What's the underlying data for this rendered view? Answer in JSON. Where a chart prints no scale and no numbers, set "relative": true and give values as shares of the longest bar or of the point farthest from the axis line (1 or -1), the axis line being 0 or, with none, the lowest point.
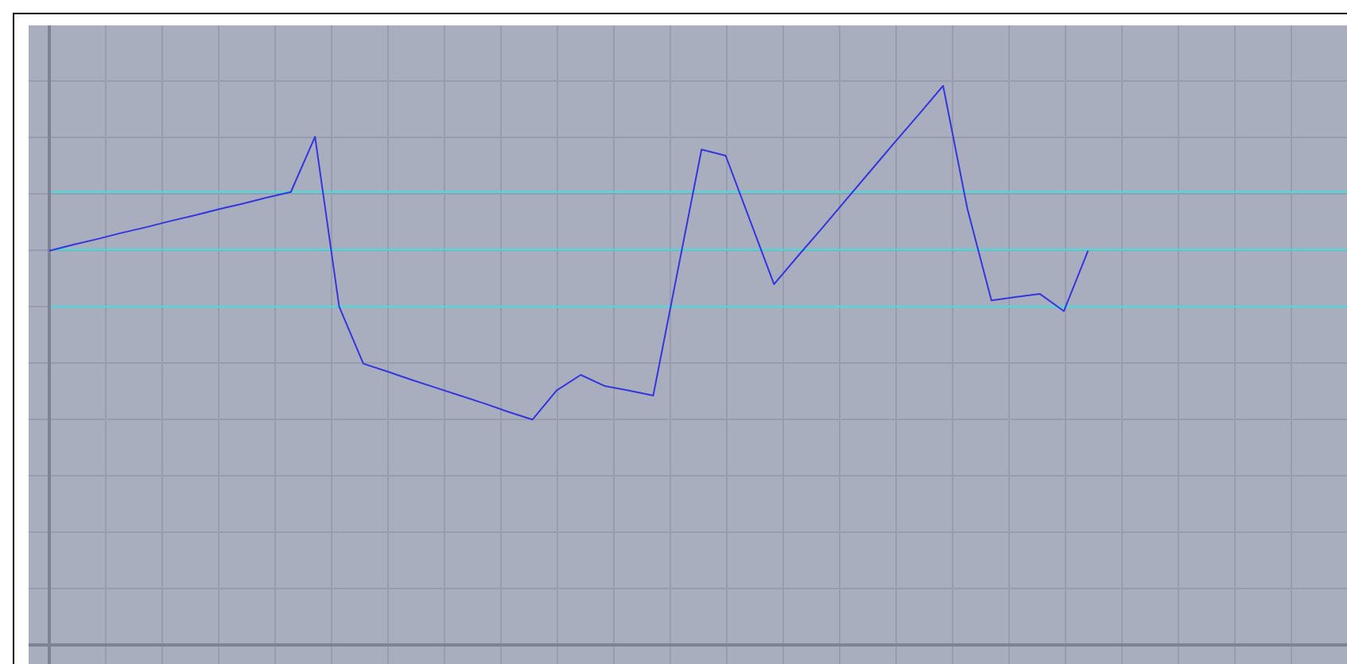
{
  "chart_data": {
    "type": "line",
    "relative": true,
    "grid": true,
    "categories": [
      null,
      null,
      null,
      null,
      null,
      null,
      null,
      null,
      null,
      null,
      null,
      null,
      null,
      null,
      null,
      null,
      null,
      null,
      null,
      null,
      null,
      null,
      null,
      null,
      null,
      null,
      null,
      null,
      null,
      null,
      null,
      null,
      null,
      null,
      null,
      null,
      null,
      null,
      null,
      null,
      null,
      null,
      null,
      null
    ],
    "series": [
      {
        "color": "#3535e0",
        "values": [
          0.705,
          0.716,
          0.726,
          0.737,
          0.747,
          0.758,
          0.768,
          0.779,
          0.789,
          0.8,
          0.81,
          0.909,
          0.605,
          0.503,
          0.489,
          0.474,
          0.46,
          0.446,
          0.432,
          0.417,
          0.403,
          0.455,
          0.483,
          0.463,
          0.455,
          0.446,
          0.666,
          0.886,
          0.875,
          0.76,
          0.645,
          0.696,
          0.746,
          0.797,
          0.848,
          0.899,
          0.949,
          1,
          0.781,
          0.616,
          0.622,
          0.628,
          0.597,
          0.705
        ]
      }
    ],
    "ref_lines": [
      {
        "axis": "y",
        "value": 0.81,
        "color": "#40e0e0"
      },
      {
        "axis": "y",
        "value": 0.707,
        "color": "#40e0e0"
      },
      {
        "axis": "y",
        "value": 0.605,
        "color": "#40e0e0"
      }
    ]
  }
}
